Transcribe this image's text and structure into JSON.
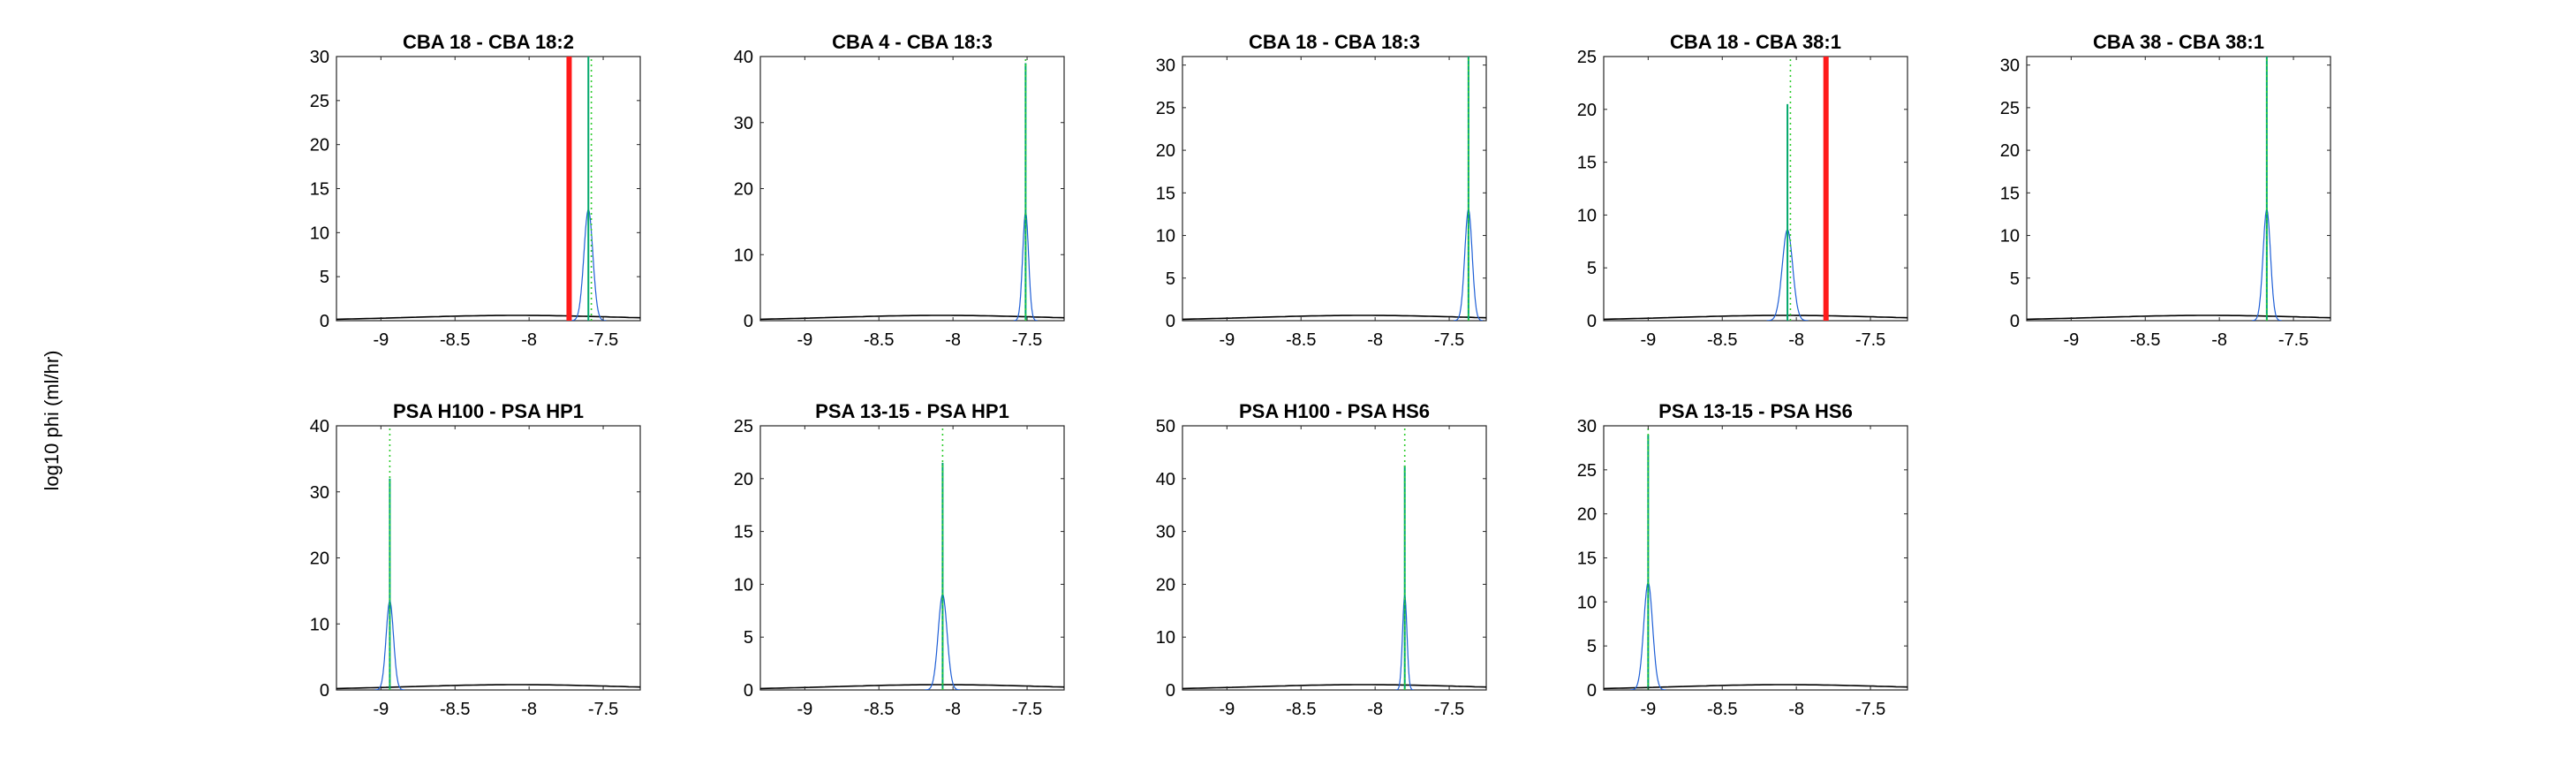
{
  "figure": {
    "ylabel": "log10 phi (ml/hr)"
  },
  "colors": {
    "posterior": "#1f5fd6",
    "peak": "#00a86b",
    "median": "#2ecc2e",
    "prior": "#000000",
    "reference": "#ff1a1a"
  },
  "chart_data": [
    {
      "type": "line",
      "title": "CBA 18 - CBA 18:2",
      "xlim": [
        -9.3,
        -7.25
      ],
      "ylim": [
        0,
        30
      ],
      "xticks": [
        -9,
        -8.5,
        -8,
        -7.5
      ],
      "xtick_labels": [
        "-9",
        "-8.5",
        "-8",
        "-7.5"
      ],
      "yticks": [
        0,
        5,
        10,
        15,
        20,
        25,
        30
      ],
      "ytick_labels": [
        "0",
        "5",
        "10",
        "15",
        "20",
        "25",
        "30"
      ],
      "mode": -7.6,
      "peak_height": 30,
      "spread": 0.03,
      "median": -7.58,
      "reference_line": -7.73
    },
    {
      "type": "line",
      "title": "CBA 4 - CBA 18:3",
      "xlim": [
        -9.3,
        -7.25
      ],
      "ylim": [
        0,
        40
      ],
      "xticks": [
        -9,
        -8.5,
        -8,
        -7.5
      ],
      "xtick_labels": [
        "-9",
        "-8.5",
        "-8",
        "-7.5"
      ],
      "yticks": [
        0,
        10,
        20,
        30,
        40
      ],
      "ytick_labels": [
        "0",
        "10",
        "20",
        "30",
        "40"
      ],
      "mode": -7.51,
      "peak_height": 39,
      "spread": 0.02,
      "median": -7.51,
      "reference_line": null
    },
    {
      "type": "line",
      "title": "CBA 18 - CBA 18:3",
      "xlim": [
        -9.3,
        -7.25
      ],
      "ylim": [
        0,
        31
      ],
      "xticks": [
        -9,
        -8.5,
        -8,
        -7.5
      ],
      "xtick_labels": [
        "-9",
        "-8.5",
        "-8",
        "-7.5"
      ],
      "yticks": [
        0,
        5,
        10,
        15,
        20,
        25,
        30
      ],
      "ytick_labels": [
        "0",
        "5",
        "10",
        "15",
        "20",
        "25",
        "30"
      ],
      "mode": -7.37,
      "peak_height": 31,
      "spread": 0.025,
      "median": -7.37,
      "reference_line": null
    },
    {
      "type": "line",
      "title": "CBA 18 - CBA 38:1",
      "xlim": [
        -9.3,
        -7.25
      ],
      "ylim": [
        0,
        25
      ],
      "xticks": [
        -9,
        -8.5,
        -8,
        -7.5
      ],
      "xtick_labels": [
        "-9",
        "-8.5",
        "-8",
        "-7.5"
      ],
      "yticks": [
        0,
        5,
        10,
        15,
        20,
        25
      ],
      "ytick_labels": [
        "0",
        "5",
        "10",
        "15",
        "20",
        "25"
      ],
      "mode": -8.06,
      "peak_height": 20.5,
      "spread": 0.035,
      "median": -8.04,
      "reference_line": -7.8
    },
    {
      "type": "line",
      "title": "CBA 38 - CBA 38:1",
      "xlim": [
        -9.3,
        -7.25
      ],
      "ylim": [
        0,
        31
      ],
      "xticks": [
        -9,
        -8.5,
        -8,
        -7.5
      ],
      "xtick_labels": [
        "-9",
        "-8.5",
        "-8",
        "-7.5"
      ],
      "yticks": [
        0,
        5,
        10,
        15,
        20,
        25,
        30
      ],
      "ytick_labels": [
        "0",
        "5",
        "10",
        "15",
        "20",
        "25",
        "30"
      ],
      "mode": -7.68,
      "peak_height": 31,
      "spread": 0.025,
      "median": -7.68,
      "reference_line": null
    },
    {
      "type": "line",
      "title": "PSA H100 - PSA HP1",
      "xlim": [
        -9.3,
        -7.25
      ],
      "ylim": [
        0,
        40
      ],
      "xticks": [
        -9,
        -8.5,
        -8,
        -7.5
      ],
      "xtick_labels": [
        "-9",
        "-8.5",
        "-8",
        "-7.5"
      ],
      "yticks": [
        0,
        10,
        20,
        30,
        40
      ],
      "ytick_labels": [
        "0",
        "10",
        "20",
        "30",
        "40"
      ],
      "mode": -8.94,
      "peak_height": 32,
      "spread": 0.025,
      "median": -8.94,
      "reference_line": null
    },
    {
      "type": "line",
      "title": "PSA 13-15 - PSA HP1",
      "xlim": [
        -9.3,
        -7.25
      ],
      "ylim": [
        0,
        25
      ],
      "xticks": [
        -9,
        -8.5,
        -8,
        -7.5
      ],
      "xtick_labels": [
        "-9",
        "-8.5",
        "-8",
        "-7.5"
      ],
      "yticks": [
        0,
        5,
        10,
        15,
        20,
        25
      ],
      "ytick_labels": [
        "0",
        "5",
        "10",
        "15",
        "20",
        "25"
      ],
      "mode": -8.07,
      "peak_height": 21.5,
      "spread": 0.03,
      "median": -8.07,
      "reference_line": null
    },
    {
      "type": "line",
      "title": "PSA H100 - PSA HS6",
      "xlim": [
        -9.3,
        -7.25
      ],
      "ylim": [
        0,
        50
      ],
      "xticks": [
        -9,
        -8.5,
        -8,
        -7.5
      ],
      "xtick_labels": [
        "-9",
        "-8.5",
        "-8",
        "-7.5"
      ],
      "yticks": [
        0,
        10,
        20,
        30,
        40,
        50
      ],
      "ytick_labels": [
        "0",
        "10",
        "20",
        "30",
        "40",
        "50"
      ],
      "mode": -7.8,
      "peak_height": 42.5,
      "spread": 0.015,
      "median": -7.8,
      "reference_line": null
    },
    {
      "type": "line",
      "title": "PSA 13-15 - PSA HS6",
      "xlim": [
        -9.3,
        -7.25
      ],
      "ylim": [
        0,
        30
      ],
      "xticks": [
        -9,
        -8.5,
        -8,
        -7.5
      ],
      "xtick_labels": [
        "-9",
        "-8.5",
        "-8",
        "-7.5"
      ],
      "yticks": [
        0,
        5,
        10,
        15,
        20,
        25,
        30
      ],
      "ytick_labels": [
        "0",
        "5",
        "10",
        "15",
        "20",
        "25",
        "30"
      ],
      "mode": -9.0,
      "peak_height": 29,
      "spread": 0.03,
      "median": -9.0,
      "reference_line": null
    }
  ]
}
